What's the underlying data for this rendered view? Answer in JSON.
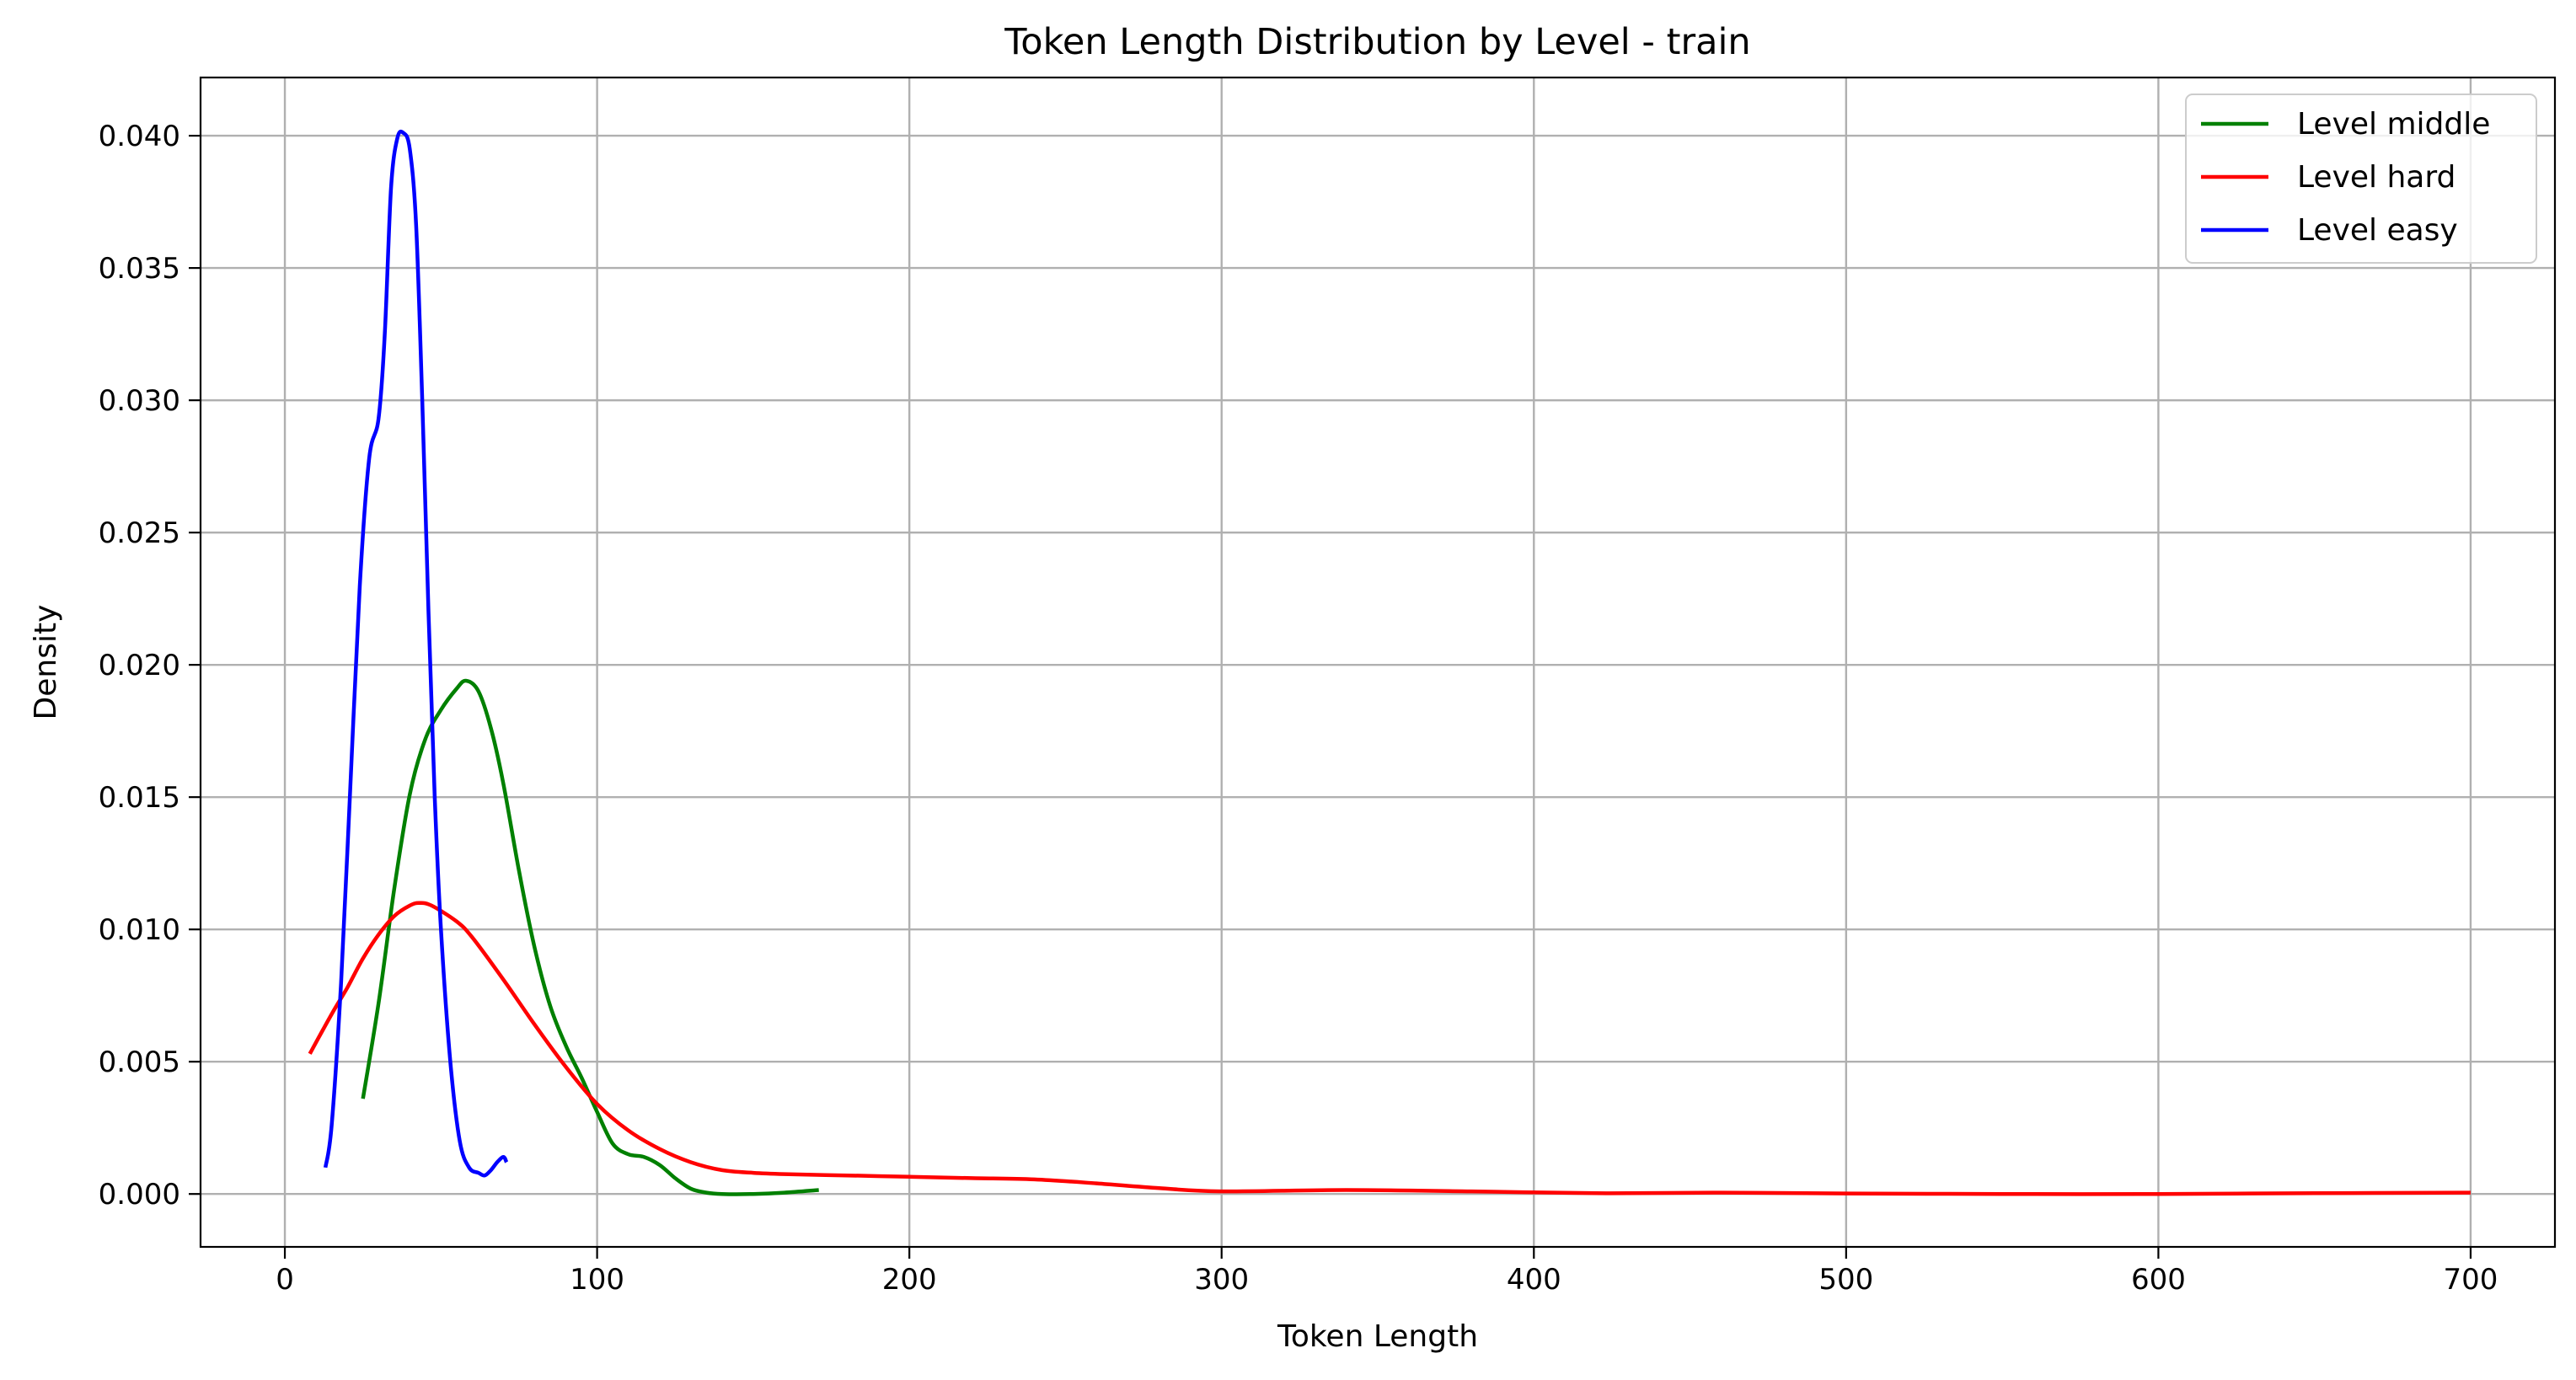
{
  "chart_data": {
    "type": "line",
    "title": "Token Length Distribution by Level - train",
    "xlabel": "Token Length",
    "ylabel": "Density",
    "xlim": [
      -27,
      727
    ],
    "ylim": [
      -0.002,
      0.0422
    ],
    "xticks": [
      0,
      100,
      200,
      300,
      400,
      500,
      600,
      700
    ],
    "yticks": [
      0.0,
      0.005,
      0.01,
      0.015,
      0.02,
      0.025,
      0.03,
      0.035,
      0.04
    ],
    "xtick_labels": [
      "0",
      "100",
      "200",
      "300",
      "400",
      "500",
      "600",
      "700"
    ],
    "ytick_labels": [
      "0.000",
      "0.005",
      "0.010",
      "0.015",
      "0.020",
      "0.025",
      "0.030",
      "0.035",
      "0.040"
    ],
    "grid": true,
    "legend_position": "upper-right",
    "series": [
      {
        "name": "Level middle",
        "color": "#008000",
        "x": [
          25,
          30,
          35,
          40,
          45,
          50,
          55,
          58,
          62,
          66,
          70,
          75,
          80,
          85,
          90,
          95,
          100,
          105,
          110,
          115,
          120,
          125,
          130,
          135,
          140,
          150,
          160,
          171
        ],
        "y": [
          0.0036,
          0.0072,
          0.0115,
          0.0151,
          0.0172,
          0.0183,
          0.0191,
          0.0194,
          0.019,
          0.0176,
          0.0155,
          0.0122,
          0.0093,
          0.0071,
          0.0056,
          0.0044,
          0.0031,
          0.0019,
          0.0015,
          0.0014,
          0.0011,
          0.0006,
          0.0002,
          5e-05,
          0.0,
          0.0,
          5e-05,
          0.00015
        ]
      },
      {
        "name": "Level hard",
        "color": "#ff0000",
        "x": [
          8,
          15,
          20,
          25,
          30,
          35,
          40,
          43,
          47,
          55,
          60,
          70,
          80,
          90,
          100,
          110,
          120,
          130,
          140,
          150,
          160,
          180,
          200,
          220,
          240,
          260,
          280,
          300,
          340,
          380,
          420,
          460,
          500,
          550,
          600,
          650,
          700
        ],
        "y": [
          0.0053,
          0.0068,
          0.0078,
          0.0089,
          0.0098,
          0.0105,
          0.0109,
          0.011,
          0.0109,
          0.0103,
          0.0097,
          0.0081,
          0.0064,
          0.0048,
          0.0034,
          0.0024,
          0.0017,
          0.0012,
          0.0009,
          0.0008,
          0.00075,
          0.0007,
          0.00065,
          0.0006,
          0.00055,
          0.0004,
          0.00022,
          0.0001,
          0.00015,
          0.0001,
          3e-05,
          5e-05,
          2e-05,
          0.0,
          0.0,
          3e-05,
          5e-05
        ]
      },
      {
        "name": "Level easy",
        "color": "#0000ff",
        "x": [
          13,
          15,
          18,
          21,
          24,
          27,
          30,
          32,
          34,
          36,
          38,
          40,
          42,
          44,
          46,
          48,
          50,
          53,
          56,
          59,
          62,
          64,
          66,
          68,
          70,
          71
        ],
        "y": [
          0.001,
          0.0026,
          0.008,
          0.0155,
          0.023,
          0.0278,
          0.0293,
          0.0325,
          0.038,
          0.0399,
          0.0401,
          0.0395,
          0.0367,
          0.03,
          0.022,
          0.015,
          0.01,
          0.005,
          0.002,
          0.001,
          0.0008,
          0.0007,
          0.0009,
          0.0012,
          0.0014,
          0.0012
        ]
      }
    ]
  }
}
